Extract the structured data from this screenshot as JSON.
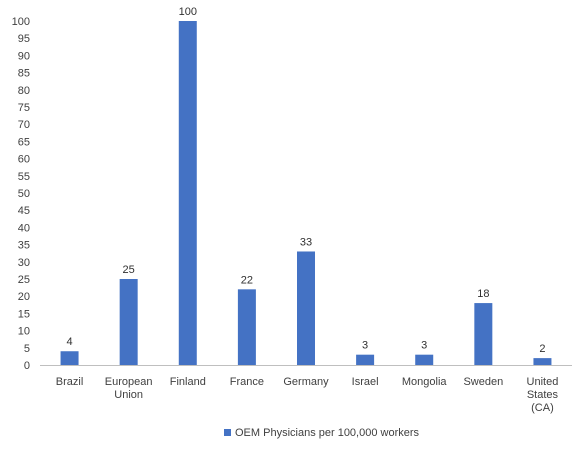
{
  "chart_data": {
    "type": "bar",
    "categories": [
      [
        "Brazil"
      ],
      [
        "European",
        "Union"
      ],
      [
        "Finland"
      ],
      [
        "France"
      ],
      [
        "Germany"
      ],
      [
        "Israel"
      ],
      [
        "Mongolia"
      ],
      [
        "Sweden"
      ],
      [
        "United",
        "States",
        "(CA)"
      ]
    ],
    "series": [
      {
        "name": "OEM Physicians per 100,000 workers",
        "values": [
          4,
          25,
          100,
          22,
          33,
          3,
          3,
          18,
          2
        ],
        "color": "#4472C4"
      }
    ],
    "data_labels": [
      "4",
      "25",
      "100",
      "22",
      "33",
      "3",
      "3",
      "18",
      "2"
    ],
    "ylim": [
      0,
      100
    ],
    "y_ticks": [
      "0",
      "5",
      "10",
      "15",
      "20",
      "25",
      "30",
      "35",
      "40",
      "45",
      "50",
      "55",
      "60",
      "65",
      "70",
      "75",
      "80",
      "85",
      "90",
      "95",
      "100"
    ],
    "grid": false,
    "legend_position": "bottom",
    "title": "",
    "xlabel": "",
    "ylabel": ""
  }
}
